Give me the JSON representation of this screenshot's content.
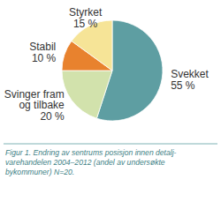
{
  "chart_data": {
    "type": "pie",
    "title": "Figur 1. Endring av sentrums posisjon innen detalj-\nvarehandelen 2004–2012 (andel av undersøkte\nbykommuner) N=20.",
    "categories": [
      "Svekket",
      "Svinger fram og tilbake",
      "Stabil",
      "Styrket"
    ],
    "values": [
      55,
      20,
      10,
      15
    ],
    "value_labels": [
      "55 %",
      "20 %",
      "10 %",
      "15 %"
    ],
    "colors": [
      "#5e9ea2",
      "#d2e2ac",
      "#e8822e",
      "#f6e497"
    ],
    "data_labels": true
  }
}
